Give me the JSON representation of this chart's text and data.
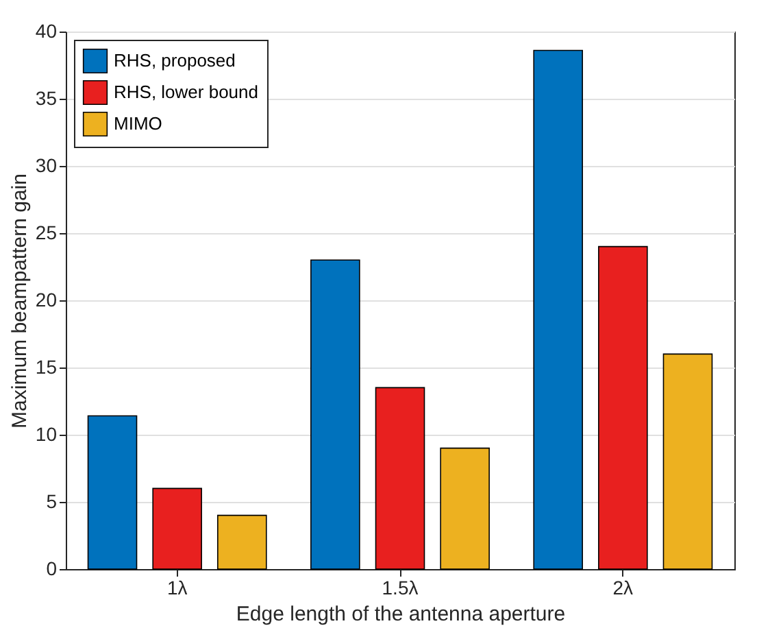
{
  "chart_data": {
    "type": "bar",
    "xlabel": "Edge length of the antenna aperture",
    "ylabel": "Maximum beampattern gain",
    "categories": [
      "1λ",
      "1.5λ",
      "2λ"
    ],
    "series": [
      {
        "name": "RHS, proposed",
        "color": "#0072bd",
        "values": [
          11.4,
          23,
          38.6
        ]
      },
      {
        "name": "RHS, lower bound",
        "color": "#e8201f",
        "values": [
          6,
          13.5,
          24
        ]
      },
      {
        "name": "MIMO",
        "color": "#edb120",
        "values": [
          4,
          9,
          16
        ]
      }
    ],
    "ylim": [
      0,
      40
    ],
    "yticks": [
      0,
      5,
      10,
      15,
      20,
      25,
      30,
      35,
      40
    ],
    "grid": "y",
    "legend": "top left"
  }
}
